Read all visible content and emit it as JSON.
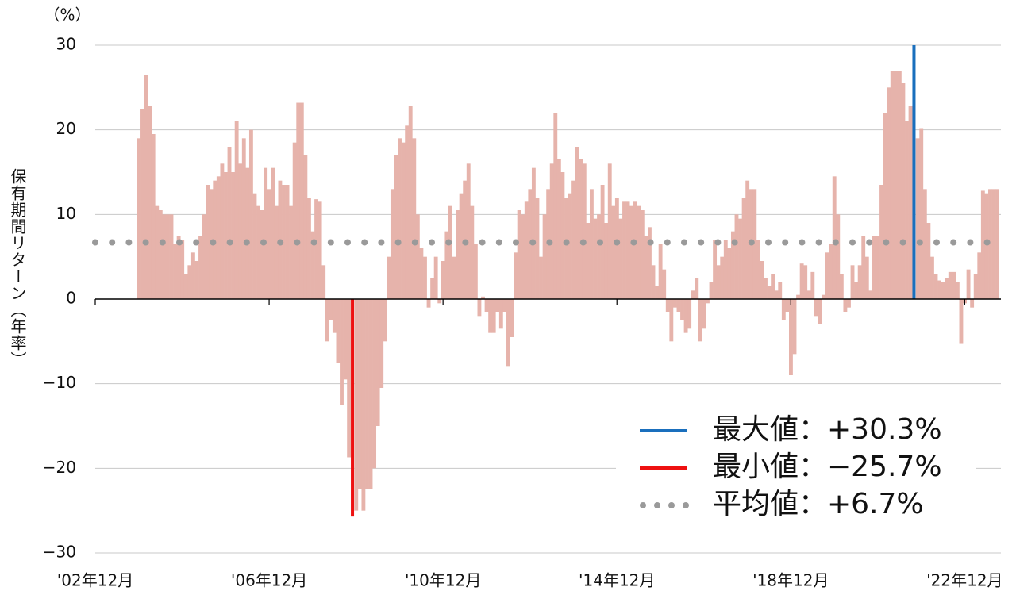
{
  "chart_data": {
    "type": "bar",
    "y_unit": "（%）",
    "y_label": "保有期間リターン（年率）",
    "x": [
      12,
      13,
      14,
      15,
      16,
      17,
      18,
      19,
      20,
      21,
      22,
      23,
      24,
      25,
      26,
      27,
      28,
      29,
      30,
      31,
      32,
      33,
      34,
      35,
      36,
      37,
      38,
      39,
      40,
      41,
      42,
      43,
      44,
      45,
      46,
      47,
      48,
      49,
      50,
      51,
      52,
      53,
      54,
      55,
      56,
      57,
      58,
      59,
      60,
      61,
      62,
      63,
      64,
      65,
      66,
      67,
      68,
      69,
      70,
      71,
      72,
      73,
      74,
      75,
      76,
      77,
      78,
      79,
      80,
      81,
      82,
      83,
      84,
      85,
      86,
      87,
      88,
      89,
      90,
      91,
      92,
      93,
      94,
      95,
      96,
      97,
      98,
      99,
      100,
      101,
      102,
      103,
      104,
      105,
      106,
      107,
      108,
      109,
      110,
      111,
      112,
      113,
      114,
      115,
      116,
      117,
      118,
      119,
      120,
      121,
      122,
      123,
      124,
      125,
      126,
      127,
      128,
      129,
      130,
      131,
      132,
      133,
      134,
      135,
      136,
      137,
      138,
      139,
      140,
      141,
      142,
      143,
      144,
      145,
      146,
      147,
      148,
      149,
      150,
      151,
      152,
      153,
      154,
      155,
      156,
      157,
      158,
      159,
      160,
      161,
      162,
      163,
      164,
      165,
      166,
      167,
      168,
      169,
      170,
      171,
      172,
      173,
      174,
      175,
      176,
      177,
      178,
      179,
      180,
      181,
      182,
      183,
      184,
      185,
      186,
      187,
      188,
      189,
      190,
      191,
      192,
      193,
      194,
      195,
      196,
      197,
      198,
      199,
      200,
      201,
      202,
      203,
      204,
      205,
      206,
      207,
      208,
      209,
      210,
      211,
      212,
      213,
      214,
      215,
      216,
      217,
      218,
      219,
      220,
      221,
      222,
      223,
      224,
      225,
      226,
      227,
      228,
      229,
      230,
      231,
      232,
      233,
      234,
      235,
      236,
      237,
      238,
      239,
      240,
      241,
      242,
      243,
      244,
      245,
      246,
      247,
      248,
      249
    ],
    "values": [
      19,
      22.5,
      26.5,
      22.8,
      19.5,
      11,
      10.5,
      10,
      10,
      10,
      6.5,
      7.5,
      7,
      3,
      4,
      5.5,
      4.5,
      7.5,
      10,
      13.5,
      13,
      14,
      14.5,
      16,
      15,
      18,
      15,
      21,
      16,
      19,
      15.5,
      20,
      12.5,
      11,
      10.5,
      15.5,
      13,
      15.5,
      11,
      14,
      13.5,
      13.5,
      11,
      18.5,
      23.2,
      23.2,
      17,
      12,
      8,
      11.8,
      11.5,
      4,
      -5,
      -2.5,
      -4,
      -7.5,
      -12.5,
      -9.5,
      -18.7,
      -25.7,
      -25,
      -22.5,
      -25,
      -22.5,
      -22.5,
      -20,
      -15,
      -10.5,
      -5,
      5,
      13,
      17,
      19,
      18.5,
      20.5,
      22.8,
      19,
      10,
      6,
      5,
      -1,
      2.5,
      5,
      -0.5,
      4.5,
      8,
      11,
      5,
      10.5,
      12.5,
      14,
      16,
      11,
      6.5,
      -2,
      0.3,
      -1.5,
      -4,
      -4,
      -1.5,
      -3.5,
      -1.5,
      -8,
      -4.5,
      5.5,
      10.5,
      10,
      11.5,
      13,
      15.5,
      12,
      5,
      10,
      13,
      16,
      22,
      16.5,
      15,
      12,
      12.5,
      14,
      18,
      16.5,
      16,
      9,
      13,
      9.5,
      10,
      13.5,
      9,
      16,
      11,
      12,
      9.5,
      11.5,
      11.5,
      11,
      11.5,
      11,
      10.5,
      7.5,
      8.5,
      4,
      1.5,
      6.5,
      3.5,
      -1.5,
      -5,
      -1,
      -1.5,
      -2.5,
      -4,
      -3.5,
      1,
      2.5,
      -5,
      -3.5,
      -0.5,
      2,
      7,
      4,
      5,
      7,
      6,
      8,
      10,
      9.5,
      12,
      14,
      13,
      13,
      7,
      4.5,
      2.5,
      1.5,
      3,
      1,
      2,
      -2.5,
      -1.5,
      -9,
      -6.5,
      0.5,
      4.2,
      4,
      1,
      3.2,
      -2,
      -3,
      0.5,
      5.5,
      6.5,
      14.5,
      10,
      3,
      -1.5,
      -1,
      4,
      2,
      4,
      7.5,
      5,
      1,
      7.5,
      7.5,
      13.5,
      22,
      25,
      27,
      27,
      27,
      25.5,
      21,
      22.8,
      30.3,
      19,
      20.2,
      13,
      9,
      5,
      3,
      2.2,
      2,
      2.5,
      3.2,
      3.2,
      2,
      -5.3,
      -0.5,
      3.5,
      -1,
      3,
      5.5,
      12.8,
      12.5,
      13,
      13,
      13
    ],
    "color": "#e6b3ab",
    "max_color": "#1a6fbd",
    "min_color": "#ee1111",
    "mean": 6.7,
    "mean_color": "#9a9a9a",
    "xlim": [
      0,
      250
    ],
    "xticks": [
      {
        "value": 0,
        "label": "'02年12月"
      },
      {
        "value": 48,
        "label": "'06年12月"
      },
      {
        "value": 96,
        "label": "'10年12月"
      },
      {
        "value": 144,
        "label": "'14年12月"
      },
      {
        "value": 192,
        "label": "'18年12月"
      },
      {
        "value": 240,
        "label": "'22年12月"
      }
    ],
    "ylim": [
      -30,
      30
    ],
    "yticks": [
      {
        "value": -30,
        "label": "−30"
      },
      {
        "value": -20,
        "label": "−20"
      },
      {
        "value": -10,
        "label": "−10"
      },
      0,
      10,
      20,
      30
    ],
    "grid": true,
    "legend": [
      {
        "label": "最大値：+30.3%",
        "color": "#1a6fbd",
        "style": "solid"
      },
      {
        "label": "最小値：−25.7%",
        "color": "#ee1111",
        "style": "solid"
      },
      {
        "label": "平均値：+6.7%",
        "color": "#9a9a9a",
        "style": "dotted"
      }
    ]
  }
}
